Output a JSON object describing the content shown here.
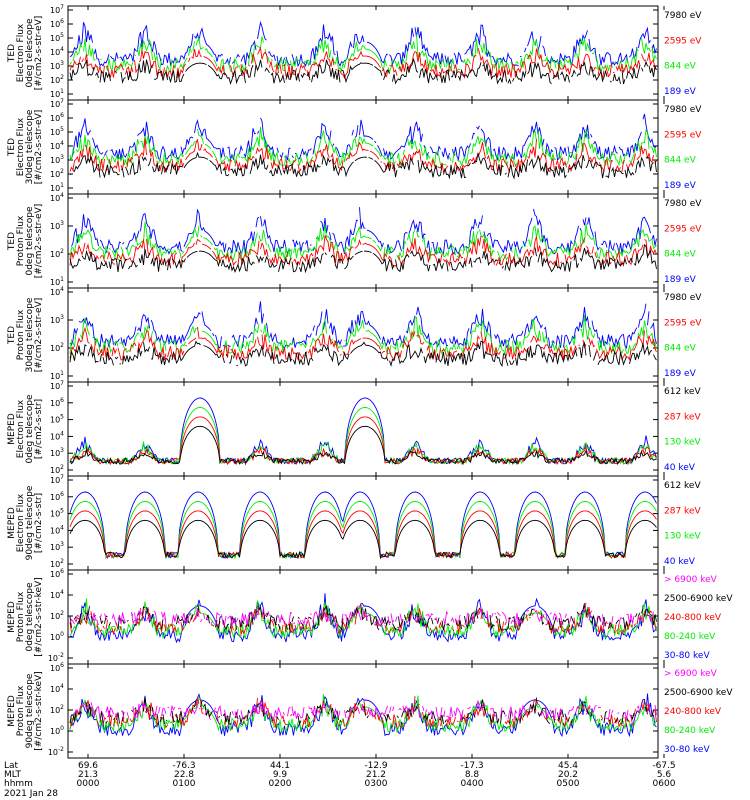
{
  "chart_data": {
    "type": "line",
    "xaxis": {
      "rows": [
        {
          "label": "Lat",
          "values": [
            "69.6",
            "-76.3",
            "44.1",
            "-12.9",
            "-17.3",
            "45.4",
            "-67.5"
          ]
        },
        {
          "label": "MLT",
          "values": [
            "21.3",
            "22.8",
            "9.9",
            "21.2",
            "8.8",
            "20.2",
            "5.6"
          ]
        },
        {
          "label": "hhmm",
          "values": [
            "0000",
            "0100",
            "0200",
            "0300",
            "0400",
            "0500",
            "0600"
          ]
        }
      ],
      "date": "2021 Jan 28"
    },
    "panels": [
      {
        "ylabel": [
          "TED",
          "Electron Flux",
          "0deg telescope",
          "[#/cm2-s-str-eV]"
        ],
        "yticks": [
          "10^1",
          "10^2",
          "10^3",
          "10^4",
          "10^5",
          "10^6",
          "10^7"
        ],
        "series": [
          {
            "name": "7980 eV",
            "color": "#000000"
          },
          {
            "name": "2595 eV",
            "color": "#ff0000"
          },
          {
            "name": "844 eV",
            "color": "#00ee00"
          },
          {
            "name": "189 eV",
            "color": "#0000ff"
          }
        ]
      },
      {
        "ylabel": [
          "TED",
          "Electron Flux",
          "30deg telescope",
          "[#/cm2-s-str-eV]"
        ],
        "yticks": [
          "10^1",
          "10^2",
          "10^3",
          "10^4",
          "10^5",
          "10^6",
          "10^7"
        ],
        "series": [
          {
            "name": "7980 eV",
            "color": "#000000"
          },
          {
            "name": "2595 eV",
            "color": "#ff0000"
          },
          {
            "name": "844 eV",
            "color": "#00ee00"
          },
          {
            "name": "189 eV",
            "color": "#0000ff"
          }
        ]
      },
      {
        "ylabel": [
          "TED",
          "Proton Flux",
          "0deg telescope",
          "[#/cm2-s-str-eV]"
        ],
        "yticks": [
          "10^1",
          "10^2",
          "10^3",
          "10^4"
        ],
        "series": [
          {
            "name": "7980 eV",
            "color": "#000000"
          },
          {
            "name": "2595 eV",
            "color": "#ff0000"
          },
          {
            "name": "844 eV",
            "color": "#00ee00"
          },
          {
            "name": "189 eV",
            "color": "#0000ff"
          }
        ]
      },
      {
        "ylabel": [
          "TED",
          "Proton Flux",
          "30deg telescope",
          "[#/cm2-s-str-eV]"
        ],
        "yticks": [
          "10^1",
          "10^2",
          "10^3",
          "10^4"
        ],
        "series": [
          {
            "name": "7980 eV",
            "color": "#000000"
          },
          {
            "name": "2595 eV",
            "color": "#ff0000"
          },
          {
            "name": "844 eV",
            "color": "#00ee00"
          },
          {
            "name": "189 eV",
            "color": "#0000ff"
          }
        ]
      },
      {
        "ylabel": [
          "MEPED",
          "Electron Flux",
          "0deg telescope",
          "[#/cm2-s-str]"
        ],
        "yticks": [
          "10^2",
          "10^3",
          "10^4",
          "10^5",
          "10^6",
          "10^7"
        ],
        "series": [
          {
            "name": "612 keV",
            "color": "#000000"
          },
          {
            "name": "287 keV",
            "color": "#ff0000"
          },
          {
            "name": "130 keV",
            "color": "#00ee00"
          },
          {
            "name": "40 keV",
            "color": "#0000ff"
          }
        ]
      },
      {
        "ylabel": [
          "MEPED",
          "Electron Flux",
          "90deg telescope",
          "[#/cm2-s-str]"
        ],
        "yticks": [
          "10^2",
          "10^3",
          "10^4",
          "10^5",
          "10^6",
          "10^7"
        ],
        "series": [
          {
            "name": "612 keV",
            "color": "#000000"
          },
          {
            "name": "287 keV",
            "color": "#ff0000"
          },
          {
            "name": "130 keV",
            "color": "#00ee00"
          },
          {
            "name": "40 keV",
            "color": "#0000ff"
          }
        ]
      },
      {
        "ylabel": [
          "MEPED",
          "Proton Flux",
          "0deg telescope",
          "[#/cm2-s-str-keV]"
        ],
        "yticks": [
          "10^-2",
          "10^0",
          "10^2",
          "10^4",
          "10^6"
        ],
        "series": [
          {
            "name": "> 6900 keV",
            "color": "#ff00ff"
          },
          {
            "name": "2500-6900 keV",
            "color": "#000000"
          },
          {
            "name": "240-800 keV",
            "color": "#ff0000"
          },
          {
            "name": "80-240 keV",
            "color": "#00ee00"
          },
          {
            "name": "30-80 keV",
            "color": "#0000ff"
          }
        ]
      },
      {
        "ylabel": [
          "MEPED",
          "Proton Flux",
          "90deg telescope",
          "[#/cm2-s-str-keV]"
        ],
        "yticks": [
          "10^-2",
          "10^0",
          "10^2",
          "10^4",
          "10^6"
        ],
        "series": [
          {
            "name": "> 6900 keV",
            "color": "#ff00ff"
          },
          {
            "name": "2500-6900 keV",
            "color": "#000000"
          },
          {
            "name": "240-800 keV",
            "color": "#ff0000"
          },
          {
            "name": "80-240 keV",
            "color": "#00ee00"
          },
          {
            "name": "30-80 keV",
            "color": "#0000ff"
          }
        ]
      }
    ]
  }
}
